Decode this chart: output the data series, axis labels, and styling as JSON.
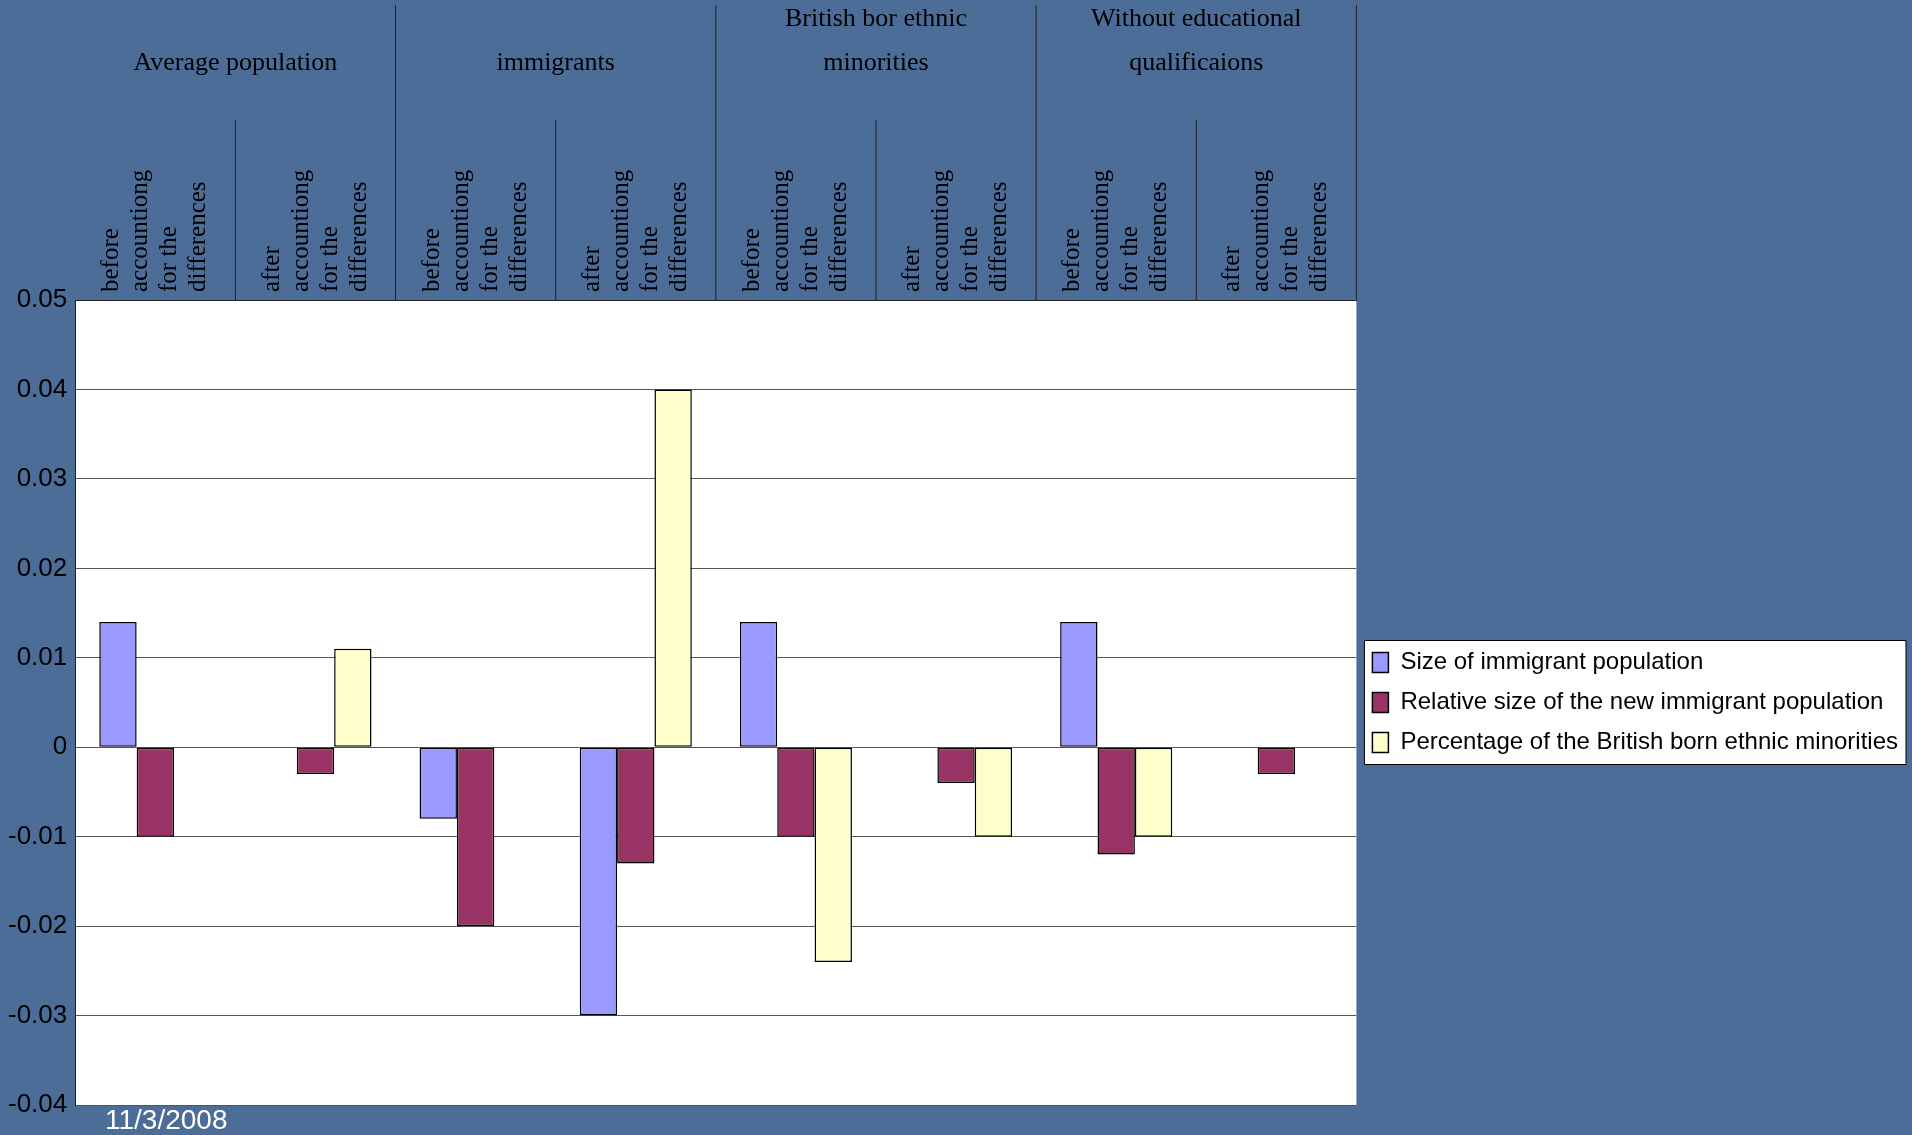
{
  "chart_data": {
    "type": "bar",
    "categories": [
      "before accountiong for the differences",
      "after accountiong for the differences",
      "before accountiong for the differences",
      "after accountiong for the differences",
      "before accountiong for the differences",
      "after accountiong for the differences",
      "before accountiong for the differences",
      "after accountiong for the differences"
    ],
    "series": [
      {
        "name": "Size of immigrant population",
        "color": "#9999ff",
        "values": [
          0.014,
          null,
          -0.008,
          -0.03,
          0.014,
          null,
          0.014,
          null
        ]
      },
      {
        "name": "Relative size of the new immigrant population",
        "color": "#993366",
        "values": [
          -0.01,
          -0.003,
          -0.02,
          -0.013,
          -0.01,
          -0.004,
          -0.012,
          -0.003
        ]
      },
      {
        "name": "Percentage of the British born ethnic minorities",
        "color": "#ffffcc",
        "values": [
          null,
          0.011,
          null,
          0.04,
          -0.024,
          -0.01,
          -0.01,
          null
        ]
      }
    ],
    "annotations": [
      "Average population",
      "immigrants",
      "British bor ethnic minorities",
      "Without educational qualificaions",
      "11/3/2008"
    ],
    "ylim": [
      -0.04,
      0.05
    ],
    "yticks": [
      -0.04,
      -0.03,
      -0.02,
      -0.01,
      0,
      0.01,
      0.02,
      0.03,
      0.04,
      0.05
    ],
    "grid": "y",
    "legend": "right"
  }
}
